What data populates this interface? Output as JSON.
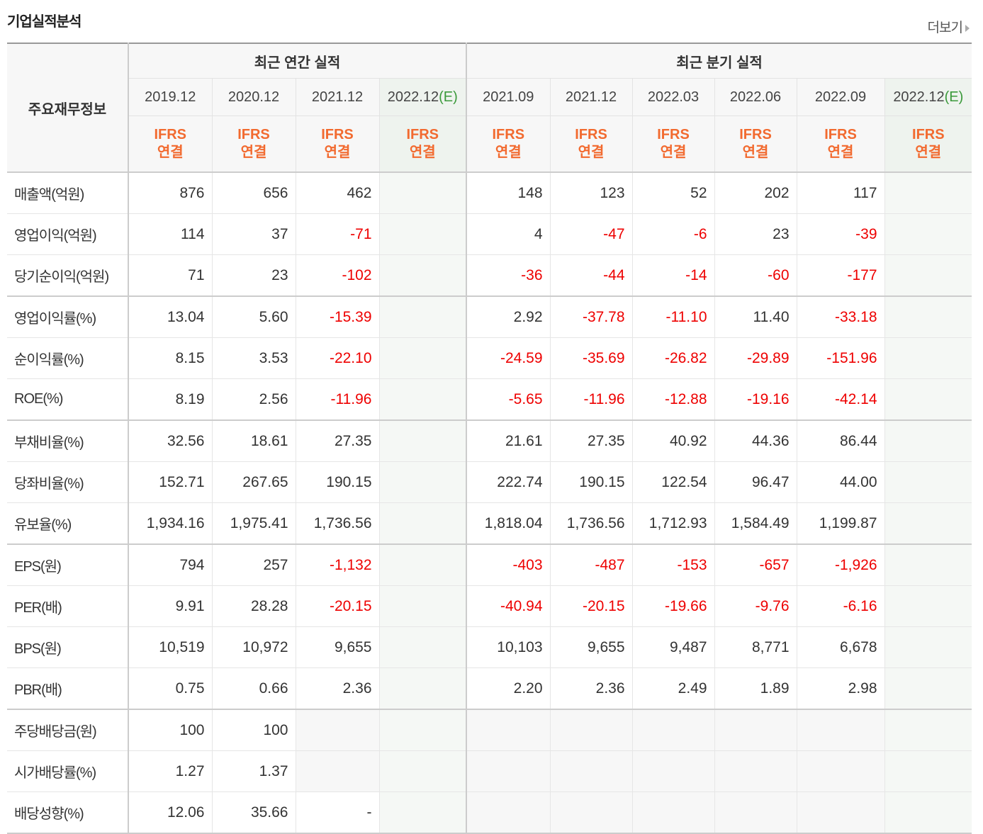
{
  "header": {
    "title": "기업실적분석",
    "more": "더보기"
  },
  "table": {
    "corner": "주요재무정보",
    "annual_group": "최근 연간 실적",
    "quarter_group": "최근 분기 실적",
    "columns": [
      {
        "date": "2019.12",
        "standard": "IFRS",
        "basis": "연결"
      },
      {
        "date": "2020.12",
        "standard": "IFRS",
        "basis": "연결"
      },
      {
        "date": "2021.12",
        "standard": "IFRS",
        "basis": "연결"
      },
      {
        "date": "2022.12",
        "note": "(E)",
        "standard": "IFRS",
        "basis": "연결"
      },
      {
        "date": "2021.09",
        "standard": "IFRS",
        "basis": "연결"
      },
      {
        "date": "2021.12",
        "standard": "IFRS",
        "basis": "연결"
      },
      {
        "date": "2022.03",
        "standard": "IFRS",
        "basis": "연결"
      },
      {
        "date": "2022.06",
        "standard": "IFRS",
        "basis": "연결"
      },
      {
        "date": "2022.09",
        "standard": "IFRS",
        "basis": "연결"
      },
      {
        "date": "2022.12",
        "note": "(E)",
        "standard": "IFRS",
        "basis": "연결"
      }
    ],
    "groups": [
      [
        {
          "label": "매출액(억원)",
          "values": [
            "876",
            "656",
            "462",
            null,
            "148",
            "123",
            "52",
            "202",
            "117",
            null
          ]
        },
        {
          "label": "영업이익(억원)",
          "values": [
            "114",
            "37",
            "-71",
            null,
            "4",
            "-47",
            "-6",
            "23",
            "-39",
            null
          ]
        },
        {
          "label": "당기순이익(억원)",
          "values": [
            "71",
            "23",
            "-102",
            null,
            "-36",
            "-44",
            "-14",
            "-60",
            "-177",
            null
          ]
        }
      ],
      [
        {
          "label": "영업이익률(%)",
          "values": [
            "13.04",
            "5.60",
            "-15.39",
            null,
            "2.92",
            "-37.78",
            "-11.10",
            "11.40",
            "-33.18",
            null
          ]
        },
        {
          "label": "순이익률(%)",
          "values": [
            "8.15",
            "3.53",
            "-22.10",
            null,
            "-24.59",
            "-35.69",
            "-26.82",
            "-29.89",
            "-151.96",
            null
          ]
        },
        {
          "label": "ROE(%)",
          "values": [
            "8.19",
            "2.56",
            "-11.96",
            null,
            "-5.65",
            "-11.96",
            "-12.88",
            "-19.16",
            "-42.14",
            null
          ]
        }
      ],
      [
        {
          "label": "부채비율(%)",
          "values": [
            "32.56",
            "18.61",
            "27.35",
            null,
            "21.61",
            "27.35",
            "40.92",
            "44.36",
            "86.44",
            null
          ]
        },
        {
          "label": "당좌비율(%)",
          "values": [
            "152.71",
            "267.65",
            "190.15",
            null,
            "222.74",
            "190.15",
            "122.54",
            "96.47",
            "44.00",
            null
          ]
        },
        {
          "label": "유보율(%)",
          "values": [
            "1,934.16",
            "1,975.41",
            "1,736.56",
            null,
            "1,818.04",
            "1,736.56",
            "1,712.93",
            "1,584.49",
            "1,199.87",
            null
          ]
        }
      ],
      [
        {
          "label": "EPS(원)",
          "values": [
            "794",
            "257",
            "-1,132",
            null,
            "-403",
            "-487",
            "-153",
            "-657",
            "-1,926",
            null
          ]
        },
        {
          "label": "PER(배)",
          "values": [
            "9.91",
            "28.28",
            "-20.15",
            null,
            "-40.94",
            "-20.15",
            "-19.66",
            "-9.76",
            "-6.16",
            null
          ]
        },
        {
          "label": "BPS(원)",
          "values": [
            "10,519",
            "10,972",
            "9,655",
            null,
            "10,103",
            "9,655",
            "9,487",
            "8,771",
            "6,678",
            null
          ]
        },
        {
          "label": "PBR(배)",
          "values": [
            "0.75",
            "0.66",
            "2.36",
            null,
            "2.20",
            "2.36",
            "2.49",
            "1.89",
            "2.98",
            null
          ]
        }
      ],
      [
        {
          "label": "주당배당금(원)",
          "values": [
            "100",
            "100",
            null,
            null,
            null,
            null,
            null,
            null,
            null,
            null
          ]
        },
        {
          "label": "시가배당률(%)",
          "values": [
            "1.27",
            "1.37",
            null,
            null,
            null,
            null,
            null,
            null,
            null,
            null
          ]
        },
        {
          "label": "배당성향(%)",
          "values": [
            "12.06",
            "35.66",
            "-",
            null,
            null,
            null,
            null,
            null,
            null,
            null
          ]
        }
      ]
    ]
  }
}
